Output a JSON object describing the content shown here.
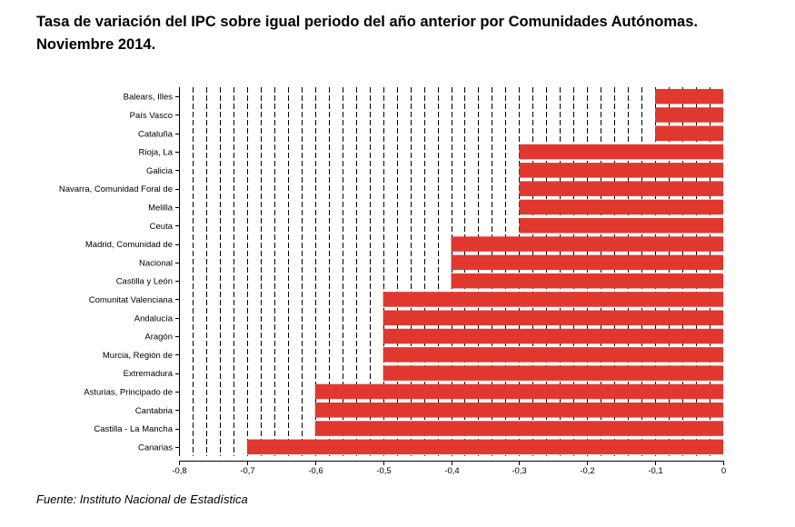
{
  "title": {
    "line1": "Tasa de variación del IPC sobre igual periodo del año anterior por Comunidades Autónomas.",
    "line2": "Noviembre 2014."
  },
  "source": "Fuente: Instituto Nacional de Estadística",
  "chart_data": {
    "type": "bar",
    "orientation": "horizontal",
    "categories": [
      "Balears, Illes",
      "País Vasco",
      "Cataluña",
      "Rioja, La",
      "Galicia",
      "Navarra, Comunidad Foral de",
      "Melilla",
      "Ceuta",
      "Madrid, Comunidad de",
      "Nacional",
      "Castilla y León",
      "Comunitat Valenciana",
      "Andalucía",
      "Aragón",
      "Murcia, Región de",
      "Extremadura",
      "Asturias, Principado de",
      "Cantabria",
      "Castilla - La Mancha",
      "Canarias"
    ],
    "values": [
      -0.1,
      -0.1,
      -0.1,
      -0.3,
      -0.3,
      -0.3,
      -0.3,
      -0.3,
      -0.4,
      -0.4,
      -0.4,
      -0.5,
      -0.5,
      -0.5,
      -0.5,
      -0.5,
      -0.6,
      -0.6,
      -0.6,
      -0.7
    ],
    "xlim": [
      -0.8,
      0
    ],
    "xticks": [
      -0.8,
      -0.7,
      -0.6,
      -0.5,
      -0.4,
      -0.3,
      -0.2,
      -0.1,
      0
    ],
    "xtick_labels": [
      "-0,8",
      "-0,7",
      "-0,6",
      "-0,5",
      "-0,4",
      "-0,3",
      "-0,2",
      "-0,1",
      "0"
    ],
    "grid": "dashed vertical",
    "bar_color": "#e0382f"
  }
}
